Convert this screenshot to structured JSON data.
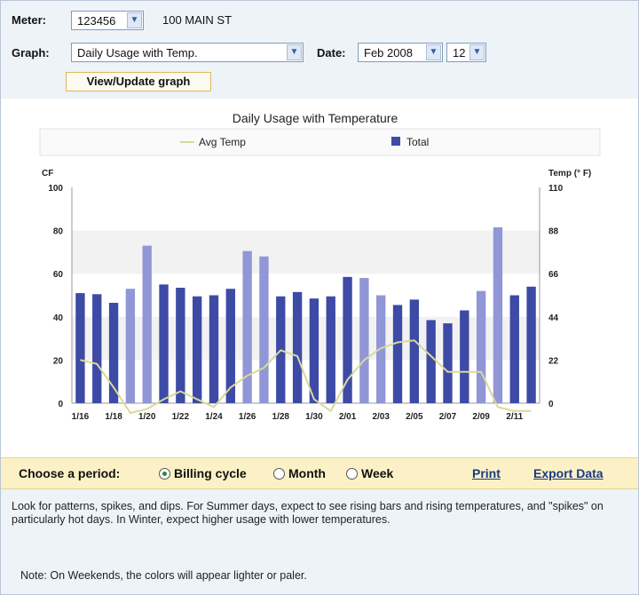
{
  "controls": {
    "meter_label": "Meter:",
    "meter_value": "123456",
    "address": "100 MAIN ST",
    "graph_label": "Graph:",
    "graph_value": "Daily Usage with Temp.",
    "date_label": "Date:",
    "date_month": "Feb 2008",
    "date_day": "12",
    "update_button": "View/Update graph"
  },
  "chart_data": {
    "type": "bar",
    "title": "Daily Usage with Temperature",
    "ylabel_left": "CF",
    "ylabel_right": "Temp (° F)",
    "ylim_left": [
      0,
      100
    ],
    "ylim_right": [
      0,
      110
    ],
    "yticks_left": [
      "0",
      "20",
      "40",
      "60",
      "80",
      "100"
    ],
    "yticks_right": [
      "0",
      "22",
      "44",
      "66",
      "88",
      "110"
    ],
    "xtick_labels": [
      "1/16",
      "1/18",
      "1/20",
      "1/22",
      "1/24",
      "1/26",
      "1/28",
      "1/30",
      "2/01",
      "2/03",
      "2/05",
      "2/07",
      "2/09",
      "2/11"
    ],
    "legend": {
      "line": "Avg Temp",
      "bar": "Total"
    },
    "colors": {
      "weekday": "#3d4aa6",
      "weekend": "#9096d6",
      "temp_line": "#d8d99a",
      "band": "#f2f2f2"
    },
    "series": [
      {
        "name": "Total",
        "values": [
          51,
          50.5,
          46.5,
          53,
          73,
          55,
          53.5,
          49.5,
          50,
          53,
          70.5,
          68,
          49.5,
          51.5,
          48.5,
          49.5,
          58.5,
          58,
          50,
          45.5,
          48,
          38.5,
          37,
          43,
          52,
          81.5,
          50,
          54
        ],
        "weekend": [
          false,
          false,
          false,
          true,
          true,
          false,
          false,
          false,
          false,
          false,
          true,
          true,
          false,
          false,
          false,
          false,
          false,
          true,
          true,
          false,
          false,
          false,
          false,
          false,
          true,
          true,
          false,
          false
        ]
      },
      {
        "name": "Avg Temp",
        "values": [
          22,
          20,
          8,
          -5,
          -3,
          2,
          6,
          2,
          -2,
          8,
          14,
          18,
          27,
          24,
          2,
          -4,
          12,
          22,
          28,
          31,
          32,
          24,
          16,
          16,
          16,
          -2,
          -4,
          -4
        ]
      }
    ]
  },
  "period": {
    "label": "Choose a period:",
    "options": [
      "Billing cycle",
      "Month",
      "Week"
    ],
    "selected": "Billing cycle",
    "print_link": "Print",
    "export_link": "Export Data"
  },
  "notes": {
    "guidance": "Look for patterns, spikes, and dips. For Summer days, expect to see rising bars and rising temperatures, and \"spikes\" on particularly hot days. In Winter, expect higher usage with lower temperatures.",
    "weekend_note": "Note: On Weekends, the colors will appear lighter or paler."
  }
}
